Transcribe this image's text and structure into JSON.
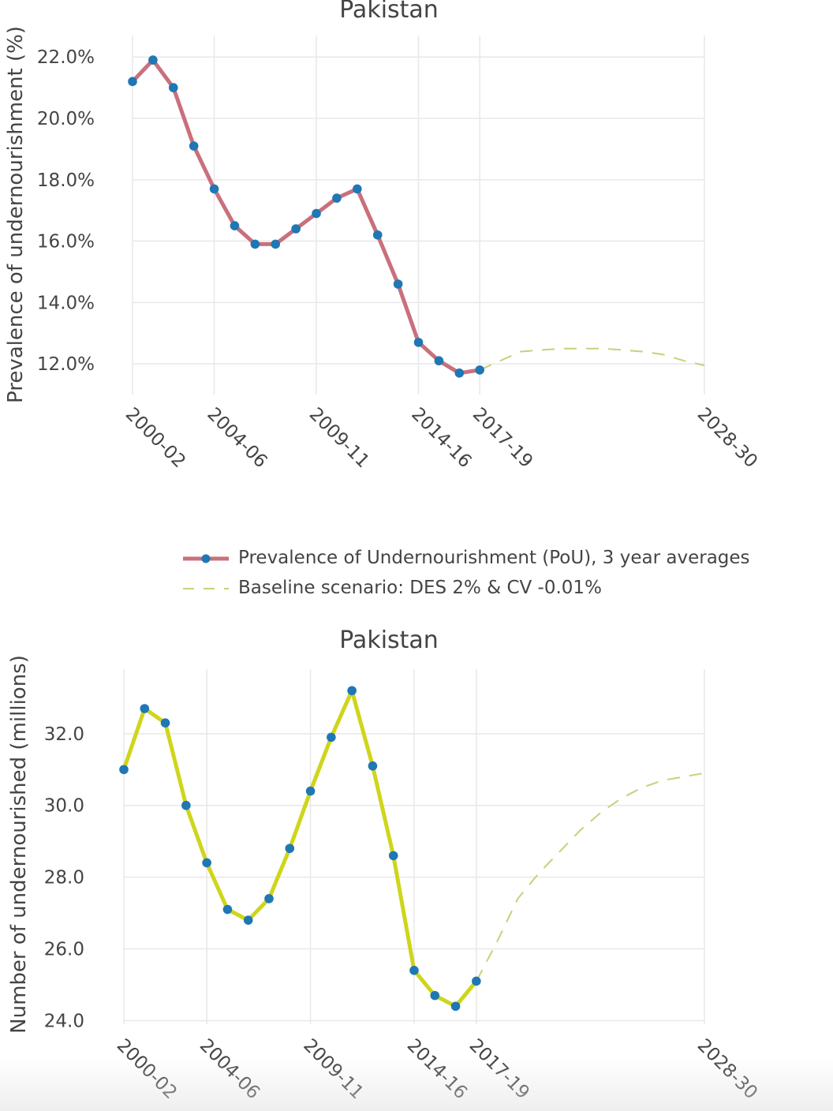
{
  "legend": {
    "pou_label": "Prevalence of Undernourishment (PoU), 3 year averages",
    "baseline_label": "Baseline scenario: DES 2% & CV -0.01%"
  },
  "colors": {
    "pou_line": "#c9707d",
    "number_line": "#cfd51a",
    "marker": "#1f77b4",
    "baseline": "#c8d07a",
    "grid": "#e8e8e8",
    "text": "#444444"
  },
  "chart_data": [
    {
      "type": "line",
      "title": "Pakistan",
      "ylabel": "Prevalence of undernourishment (%)",
      "ylim": [
        11.0,
        22.7
      ],
      "yticks": [
        12,
        14,
        16,
        18,
        20,
        22
      ],
      "ytick_labels": [
        "12.0%",
        "14.0%",
        "16.0%",
        "18.0%",
        "20.0%",
        "22.0%"
      ],
      "xlim": [
        2000.0,
        2028.0
      ],
      "xticks": [
        2000,
        2004,
        2009,
        2014,
        2017,
        2028
      ],
      "xtick_labels": [
        "2000-02",
        "2004-06",
        "2009-11",
        "2014-16",
        "2017-19",
        "2028-30"
      ],
      "series": [
        {
          "name": "Prevalence of Undernourishment (PoU), 3 year averages",
          "style": "solid-markers",
          "x": [
            2000,
            2001,
            2002,
            2003,
            2004,
            2005,
            2006,
            2007,
            2008,
            2009,
            2010,
            2011,
            2012,
            2013,
            2014,
            2015,
            2016,
            2017
          ],
          "y": [
            21.2,
            21.9,
            21.0,
            19.1,
            17.7,
            16.5,
            15.9,
            15.9,
            16.4,
            16.9,
            17.4,
            17.7,
            16.2,
            14.6,
            12.7,
            12.1,
            11.7,
            11.8
          ]
        },
        {
          "name": "Baseline scenario: DES 2% & CV -0.01%",
          "style": "dashed",
          "x": [
            2017,
            2018,
            2019,
            2020,
            2021,
            2022,
            2023,
            2024,
            2025,
            2026,
            2027,
            2028
          ],
          "y": [
            11.8,
            12.1,
            12.4,
            12.45,
            12.5,
            12.5,
            12.5,
            12.45,
            12.4,
            12.3,
            12.1,
            11.95
          ]
        }
      ]
    },
    {
      "type": "line",
      "title": "Pakistan",
      "ylabel": "Number of undernourished (millions)",
      "ylim": [
        23.9,
        33.8
      ],
      "yticks": [
        24,
        26,
        28,
        30,
        32
      ],
      "ytick_labels": [
        "24.0",
        "26.0",
        "28.0",
        "30.0",
        "32.0"
      ],
      "xlim": [
        2000.0,
        2028.0
      ],
      "xticks": [
        2000,
        2004,
        2009,
        2014,
        2017,
        2028
      ],
      "xtick_labels": [
        "2000-02",
        "2004-06",
        "2009-11",
        "2014-16",
        "2017-19",
        "2028-30"
      ],
      "series": [
        {
          "name": "Prevalence of Undernourishment (PoU), 3 year averages",
          "style": "solid-markers",
          "x": [
            2000,
            2001,
            2002,
            2003,
            2004,
            2005,
            2006,
            2007,
            2008,
            2009,
            2010,
            2011,
            2012,
            2013,
            2014,
            2015,
            2016,
            2017
          ],
          "y": [
            31.0,
            32.7,
            32.3,
            30.0,
            28.4,
            27.1,
            26.8,
            27.4,
            28.8,
            30.4,
            31.9,
            33.2,
            31.1,
            28.6,
            25.4,
            24.7,
            24.4,
            25.1
          ]
        },
        {
          "name": "Baseline scenario: DES 2% & CV -0.01%",
          "style": "dashed",
          "x": [
            2017,
            2018,
            2019,
            2020,
            2021,
            2022,
            2023,
            2024,
            2025,
            2026,
            2027,
            2028
          ],
          "y": [
            25.1,
            26.2,
            27.4,
            28.1,
            28.7,
            29.3,
            29.8,
            30.2,
            30.5,
            30.7,
            30.8,
            30.9
          ]
        }
      ]
    }
  ]
}
